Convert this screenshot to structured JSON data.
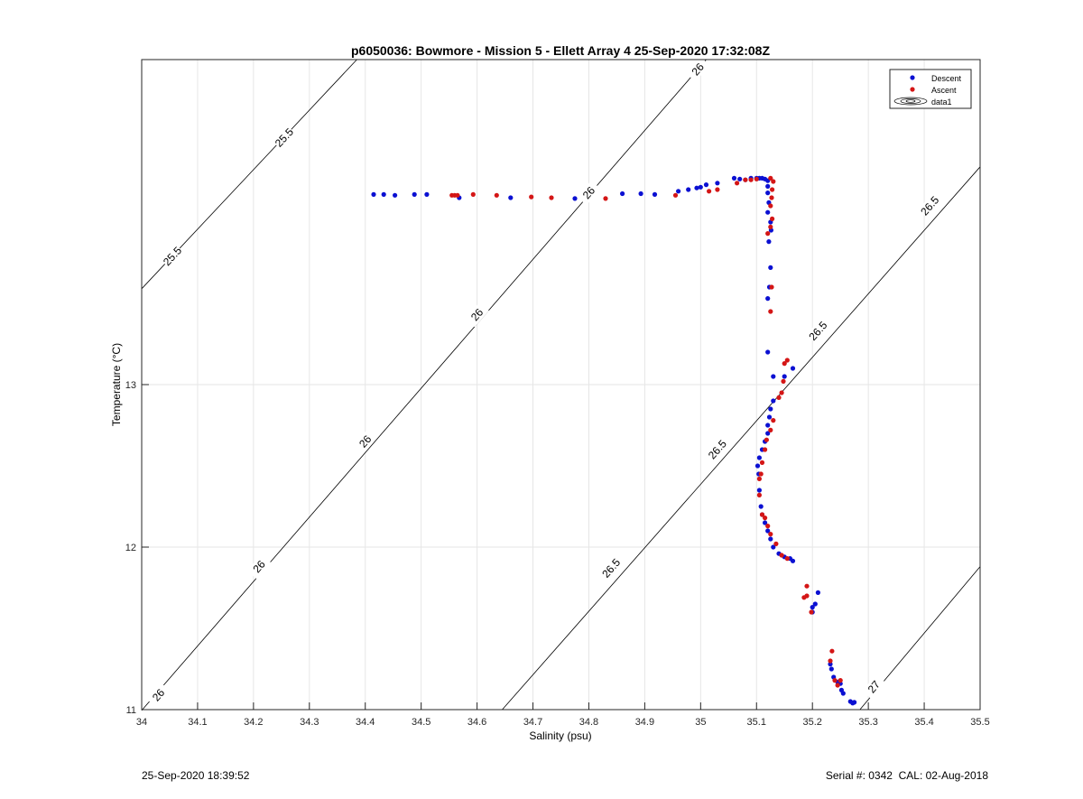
{
  "footer": {
    "timestamp": "25-Sep-2020 18:39:52",
    "serial": "Serial #: 0342  CAL: 02-Aug-2018"
  },
  "colors": {
    "descent": "#0b10d2",
    "ascent": "#d41616",
    "grid": "#e6e6e6",
    "contour": "#000000"
  },
  "chart_data": {
    "type": "scatter",
    "title": "p6050036: Bowmore - Mission 5 - Ellett Array 4 25-Sep-2020 17:32:08Z",
    "xlabel": "Salinity (psu)",
    "ylabel": "Temperature (°C)",
    "xlim": [
      34,
      35.5
    ],
    "ylim": [
      11,
      15
    ],
    "xticks": [
      34,
      34.1,
      34.2,
      34.3,
      34.4,
      34.5,
      34.6,
      34.7,
      34.8,
      34.9,
      35,
      35.1,
      35.2,
      35.3,
      35.4,
      35.5
    ],
    "xtick_labels": [
      "34",
      "34.1",
      "34.2",
      "34.3",
      "34.4",
      "34.5",
      "34.6",
      "34.7",
      "34.8",
      "34.9",
      "35",
      "35.1",
      "35.2",
      "35.3",
      "35.4",
      "35.5"
    ],
    "yticks": [
      11,
      12,
      13
    ],
    "ytick_labels": [
      "11",
      "12",
      "13"
    ],
    "grid": true,
    "legend": {
      "position": "top-right",
      "entries": [
        "Descent",
        "Ascent",
        "data1"
      ]
    },
    "contours": [
      {
        "label": "25.5",
        "points": [
          [
            34,
            13.59
          ],
          [
            34.385,
            15
          ]
        ],
        "label_positions": [
          [
            34.055,
            13.79
          ],
          [
            34.255,
            14.52
          ]
        ]
      },
      {
        "label": "26",
        "points": [
          [
            34,
            10.995
          ],
          [
            35.01,
            15
          ]
        ],
        "label_positions": [
          [
            34.03,
            11.09
          ],
          [
            34.21,
            11.88
          ],
          [
            34.4,
            12.65
          ],
          [
            34.6,
            13.43
          ],
          [
            34.8,
            14.18
          ],
          [
            34.995,
            14.94
          ]
        ]
      },
      {
        "label": "26.5",
        "points": [
          [
            34.645,
            11
          ],
          [
            35.5,
            14.34
          ]
        ],
        "label_positions": [
          [
            34.84,
            11.87
          ],
          [
            35.03,
            12.6
          ],
          [
            35.21,
            13.33
          ],
          [
            35.41,
            14.1
          ]
        ]
      },
      {
        "label": "27",
        "points": [
          [
            35.285,
            11
          ],
          [
            35.5,
            11.88
          ]
        ],
        "label_positions": [
          [
            35.31,
            11.14
          ]
        ]
      }
    ],
    "series": [
      {
        "name": "Descent",
        "points": [
          [
            34.415,
            14.17
          ],
          [
            34.433,
            14.17
          ],
          [
            34.453,
            14.165
          ],
          [
            34.488,
            14.17
          ],
          [
            34.51,
            14.17
          ],
          [
            34.568,
            14.15
          ],
          [
            34.66,
            14.15
          ],
          [
            34.775,
            14.145
          ],
          [
            34.86,
            14.175
          ],
          [
            34.893,
            14.175
          ],
          [
            34.918,
            14.17
          ],
          [
            34.96,
            14.19
          ],
          [
            34.978,
            14.2
          ],
          [
            34.993,
            14.21
          ],
          [
            35.0,
            14.215
          ],
          [
            35.01,
            14.23
          ],
          [
            35.03,
            14.24
          ],
          [
            35.06,
            14.27
          ],
          [
            35.07,
            14.265
          ],
          [
            35.08,
            14.26
          ],
          [
            35.09,
            14.27
          ],
          [
            35.1,
            14.27
          ],
          [
            35.105,
            14.27
          ],
          [
            35.11,
            14.27
          ],
          [
            35.115,
            14.265
          ],
          [
            35.12,
            14.255
          ],
          [
            35.12,
            14.22
          ],
          [
            35.12,
            14.18
          ],
          [
            35.122,
            14.12
          ],
          [
            35.12,
            14.06
          ],
          [
            35.125,
            14.0
          ],
          [
            35.126,
            13.95
          ],
          [
            35.122,
            13.88
          ],
          [
            35.125,
            13.72
          ],
          [
            35.123,
            13.6
          ],
          [
            35.12,
            13.53
          ],
          [
            35.12,
            13.2
          ],
          [
            35.13,
            13.05
          ],
          [
            35.15,
            13.05
          ],
          [
            35.165,
            13.1
          ],
          [
            35.13,
            12.9
          ],
          [
            35.125,
            12.85
          ],
          [
            35.123,
            12.8
          ],
          [
            35.12,
            12.75
          ],
          [
            35.12,
            12.7
          ],
          [
            35.115,
            12.65
          ],
          [
            35.11,
            12.6
          ],
          [
            35.105,
            12.55
          ],
          [
            35.102,
            12.5
          ],
          [
            35.104,
            12.45
          ],
          [
            35.105,
            12.35
          ],
          [
            35.108,
            12.25
          ],
          [
            35.11,
            12.2
          ],
          [
            35.115,
            12.15
          ],
          [
            35.12,
            12.1
          ],
          [
            35.125,
            12.05
          ],
          [
            35.13,
            12.0
          ],
          [
            35.14,
            11.96
          ],
          [
            35.15,
            11.94
          ],
          [
            35.16,
            11.93
          ],
          [
            35.165,
            11.915
          ],
          [
            35.2,
            11.63
          ],
          [
            35.205,
            11.65
          ],
          [
            35.21,
            11.72
          ],
          [
            35.2,
            11.6
          ],
          [
            35.232,
            11.28
          ],
          [
            35.234,
            11.25
          ],
          [
            35.238,
            11.2
          ],
          [
            35.245,
            11.17
          ],
          [
            35.25,
            11.16
          ],
          [
            35.252,
            11.12
          ],
          [
            35.255,
            11.1
          ],
          [
            35.268,
            11.05
          ],
          [
            35.272,
            11.04
          ],
          [
            35.275,
            11.045
          ]
        ]
      },
      {
        "name": "Ascent",
        "points": [
          [
            34.555,
            14.165
          ],
          [
            34.56,
            14.165
          ],
          [
            34.565,
            14.165
          ],
          [
            34.593,
            14.17
          ],
          [
            34.635,
            14.165
          ],
          [
            34.697,
            14.155
          ],
          [
            34.733,
            14.15
          ],
          [
            34.83,
            14.145
          ],
          [
            34.955,
            14.165
          ],
          [
            35.015,
            14.19
          ],
          [
            35.03,
            14.2
          ],
          [
            35.065,
            14.24
          ],
          [
            35.08,
            14.26
          ],
          [
            35.09,
            14.26
          ],
          [
            35.1,
            14.265
          ],
          [
            35.125,
            14.27
          ],
          [
            35.13,
            14.25
          ],
          [
            35.128,
            14.2
          ],
          [
            35.127,
            14.15
          ],
          [
            35.125,
            14.1
          ],
          [
            35.128,
            14.02
          ],
          [
            35.125,
            13.97
          ],
          [
            35.12,
            13.93
          ],
          [
            35.127,
            13.6
          ],
          [
            35.125,
            13.45
          ],
          [
            35.15,
            13.13
          ],
          [
            35.155,
            13.15
          ],
          [
            35.148,
            13.02
          ],
          [
            35.145,
            12.95
          ],
          [
            35.14,
            12.92
          ],
          [
            35.13,
            12.78
          ],
          [
            35.125,
            12.72
          ],
          [
            35.118,
            12.66
          ],
          [
            35.115,
            12.6
          ],
          [
            35.11,
            12.52
          ],
          [
            35.108,
            12.45
          ],
          [
            35.105,
            12.42
          ],
          [
            35.105,
            12.32
          ],
          [
            35.11,
            12.2
          ],
          [
            35.115,
            12.18
          ],
          [
            35.12,
            12.13
          ],
          [
            35.125,
            12.08
          ],
          [
            35.135,
            12.02
          ],
          [
            35.145,
            11.95
          ],
          [
            35.155,
            11.93
          ],
          [
            35.19,
            11.76
          ],
          [
            35.185,
            11.69
          ],
          [
            35.19,
            11.7
          ],
          [
            35.198,
            11.6
          ],
          [
            35.235,
            11.36
          ],
          [
            35.232,
            11.3
          ],
          [
            35.24,
            11.18
          ],
          [
            35.245,
            11.15
          ],
          [
            35.25,
            11.18
          ]
        ]
      }
    ]
  }
}
